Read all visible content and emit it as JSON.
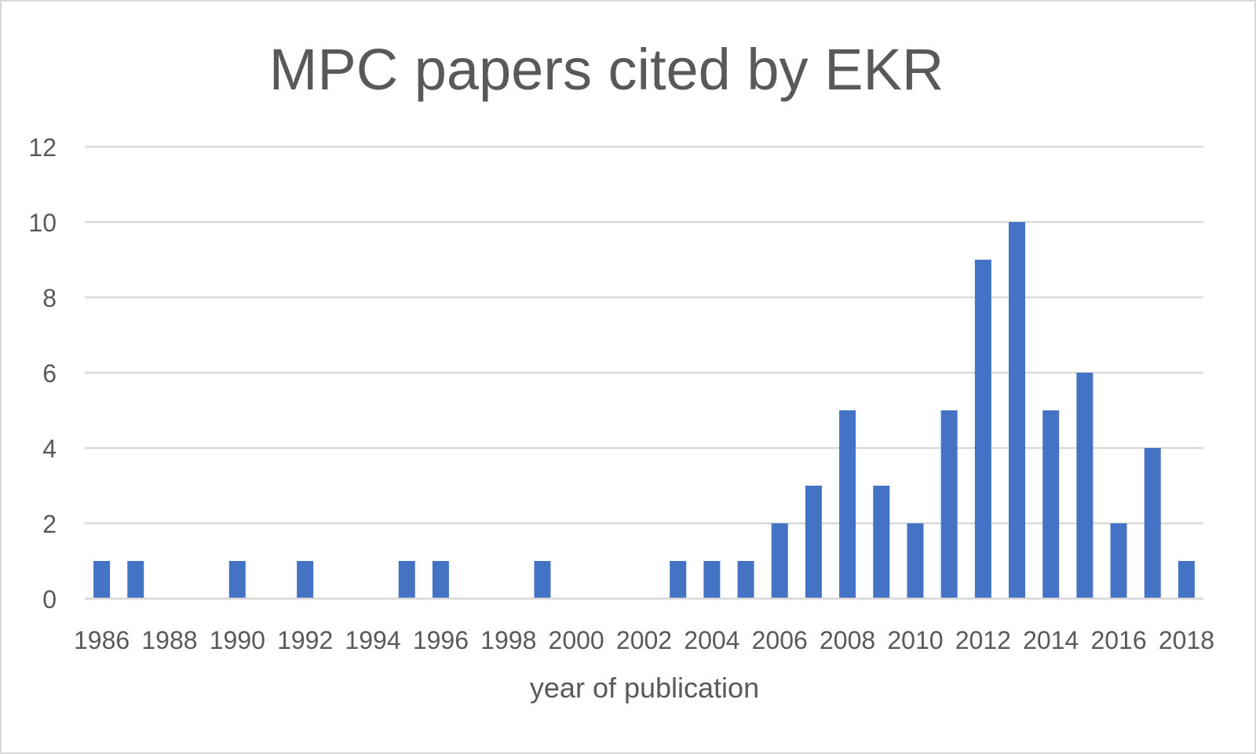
{
  "chart_data": {
    "type": "bar",
    "title": "MPC papers cited by EKR",
    "xlabel": "year of publication",
    "ylabel": "",
    "ylim": [
      0,
      12
    ],
    "yticks": [
      0,
      2,
      4,
      6,
      8,
      10,
      12
    ],
    "xtick_labels": [
      "1986",
      "1988",
      "1990",
      "1992",
      "1994",
      "1996",
      "1998",
      "2000",
      "2002",
      "2004",
      "2006",
      "2008",
      "2010",
      "2012",
      "2014",
      "2016",
      "2018"
    ],
    "grid": true,
    "legend": "none",
    "bar_color": "#4472c4",
    "categories": [
      "1986",
      "1987",
      "1988",
      "1989",
      "1990",
      "1991",
      "1992",
      "1993",
      "1994",
      "1995",
      "1996",
      "1997",
      "1998",
      "1999",
      "2000",
      "2001",
      "2002",
      "2003",
      "2004",
      "2005",
      "2006",
      "2007",
      "2008",
      "2009",
      "2010",
      "2011",
      "2012",
      "2013",
      "2014",
      "2015",
      "2016",
      "2017",
      "2018"
    ],
    "values": [
      1,
      1,
      0,
      0,
      1,
      0,
      1,
      0,
      0,
      1,
      1,
      0,
      0,
      1,
      0,
      0,
      0,
      1,
      1,
      1,
      2,
      3,
      5,
      3,
      2,
      5,
      9,
      10,
      5,
      6,
      2,
      4,
      1
    ]
  }
}
